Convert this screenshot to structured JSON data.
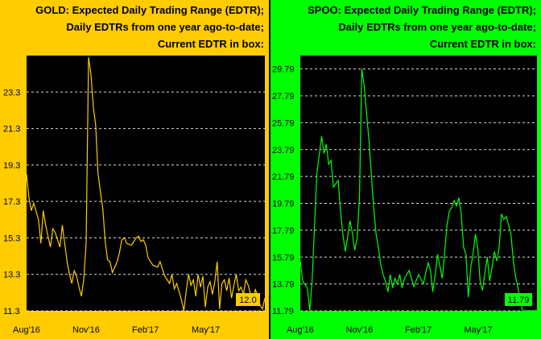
{
  "charts": [
    {
      "id": "gold",
      "title_lines": [
        "GOLD:  Expected Daily Trading Range (EDTR);",
        "Daily EDTRs from one year ago-to-date;",
        "Current EDTR in box:"
      ],
      "current_box": "12.0"
    },
    {
      "id": "spoo",
      "title_lines": [
        "SPOO:  Expected Daily Trading Range (EDTR);",
        "Daily EDTRs from one year ago-to-date;",
        "Current EDTR in box:"
      ],
      "current_box": "11.79"
    }
  ],
  "colors": {
    "gold_background": "#FFCC00",
    "spoo_background": "#00FF00",
    "plot_background": "#000000",
    "gold_line": "#FFCC00",
    "spoo_line": "#00FF00"
  },
  "chart_data": [
    {
      "type": "line",
      "title": "GOLD:  Expected Daily Trading Range (EDTR); Daily EDTRs from one year ago-to-date; Current EDTR in box:",
      "ylim": [
        11.3,
        25.3
      ],
      "yticks": [
        "23.3",
        "21.3",
        "19.3",
        "17.3",
        "15.3",
        "13.3",
        "11.3"
      ],
      "xticks": [
        {
          "label": "Aug'16",
          "t": 0.0
        },
        {
          "label": "Nov'16",
          "t": 0.25
        },
        {
          "label": "Feb'17",
          "t": 0.5
        },
        {
          "label": "May'17",
          "t": 0.75
        }
      ],
      "grid": true,
      "series": [
        {
          "t": [
            0.0,
            0.01,
            0.02,
            0.03,
            0.05,
            0.06,
            0.07,
            0.08,
            0.09,
            0.1,
            0.11,
            0.12,
            0.14,
            0.15,
            0.17,
            0.18,
            0.19,
            0.2,
            0.21,
            0.22,
            0.23,
            0.24,
            0.25,
            0.26,
            0.27,
            0.28,
            0.29,
            0.3,
            0.31,
            0.32,
            0.33,
            0.34,
            0.35,
            0.36,
            0.38,
            0.39,
            0.4,
            0.41,
            0.42,
            0.44,
            0.46,
            0.47,
            0.48,
            0.49,
            0.5,
            0.51,
            0.53,
            0.55,
            0.56,
            0.58,
            0.6,
            0.61,
            0.62,
            0.63,
            0.65,
            0.66,
            0.67,
            0.68,
            0.69,
            0.7,
            0.71,
            0.72,
            0.73,
            0.74,
            0.75,
            0.76,
            0.77,
            0.78,
            0.79,
            0.8,
            0.81,
            0.82,
            0.83,
            0.84,
            0.85,
            0.86,
            0.87,
            0.88,
            0.89,
            0.9,
            0.91,
            0.92,
            0.93,
            0.94,
            0.95,
            0.96,
            0.97,
            0.98,
            0.99,
            1.0
          ],
          "values": [
            18.8,
            17.5,
            16.8,
            17.2,
            16.3,
            15.0,
            16.8,
            16.0,
            15.4,
            14.8,
            15.8,
            15.6,
            14.8,
            16.0,
            14.0,
            13.3,
            12.8,
            13.5,
            13.2,
            12.6,
            12.1,
            13.0,
            15.0,
            25.2,
            24.3,
            22.5,
            21.5,
            18.8,
            17.8,
            16.9,
            15.1,
            14.1,
            14.0,
            13.4,
            14.0,
            14.5,
            15.2,
            15.3,
            15.0,
            14.9,
            15.3,
            15.4,
            15.1,
            15.2,
            14.9,
            14.2,
            13.8,
            13.7,
            14.0,
            13.2,
            12.8,
            13.3,
            12.5,
            12.8,
            11.9,
            11.3,
            12.4,
            13.3,
            12.7,
            13.0,
            12.1,
            13.3,
            12.6,
            13.2,
            11.5,
            12.6,
            12.9,
            12.2,
            12.9,
            14.0,
            11.4,
            12.8,
            13.0,
            12.4,
            13.1,
            12.0,
            12.7,
            13.3,
            12.4,
            12.6,
            12.2,
            13.0,
            12.7,
            12.2,
            11.8,
            12.5,
            12.0,
            11.6,
            11.4,
            12.0
          ]
        }
      ]
    },
    {
      "type": "line",
      "title": "SPOO:  Expected Daily Trading Range (EDTR); Daily EDTRs from one year ago-to-date; Current EDTR in box:",
      "ylim": [
        11.79,
        30.79
      ],
      "yticks": [
        "29.79",
        "27.79",
        "25.79",
        "23.79",
        "21.79",
        "19.79",
        "17.79",
        "15.79",
        "13.79",
        "11.79"
      ],
      "xticks": [
        {
          "label": "Aug'16",
          "t": 0.0
        },
        {
          "label": "Nov'16",
          "t": 0.25
        },
        {
          "label": "Feb'17",
          "t": 0.5
        },
        {
          "label": "May'17",
          "t": 0.75
        }
      ],
      "grid": true,
      "series": [
        {
          "t": [
            0.0,
            0.01,
            0.03,
            0.04,
            0.05,
            0.06,
            0.07,
            0.09,
            0.1,
            0.11,
            0.12,
            0.13,
            0.14,
            0.16,
            0.17,
            0.18,
            0.19,
            0.2,
            0.21,
            0.22,
            0.23,
            0.24,
            0.25,
            0.26,
            0.27,
            0.28,
            0.29,
            0.3,
            0.31,
            0.32,
            0.33,
            0.34,
            0.35,
            0.36,
            0.37,
            0.38,
            0.39,
            0.4,
            0.41,
            0.42,
            0.43,
            0.44,
            0.46,
            0.48,
            0.5,
            0.52,
            0.54,
            0.55,
            0.56,
            0.57,
            0.58,
            0.6,
            0.62,
            0.63,
            0.64,
            0.65,
            0.66,
            0.67,
            0.68,
            0.69,
            0.7,
            0.71,
            0.72,
            0.73,
            0.74,
            0.75,
            0.76,
            0.77,
            0.78,
            0.79,
            0.8,
            0.81,
            0.82,
            0.83,
            0.84,
            0.85,
            0.86,
            0.87,
            0.88,
            0.89,
            0.9,
            0.91,
            0.92,
            0.93,
            0.94,
            0.95,
            0.96,
            0.97,
            0.98,
            0.99,
            1.0
          ],
          "values": [
            15.5,
            14.0,
            13.5,
            11.8,
            14.0,
            18.0,
            22.0,
            24.8,
            23.5,
            24.2,
            22.7,
            23.0,
            21.0,
            21.5,
            19.2,
            17.5,
            16.2,
            17.3,
            18.5,
            17.6,
            16.3,
            17.2,
            20.2,
            29.8,
            28.5,
            26.5,
            24.5,
            22.0,
            19.5,
            17.5,
            16.5,
            15.2,
            14.5,
            14.0,
            13.2,
            14.5,
            13.5,
            14.2,
            13.8,
            14.5,
            13.5,
            14.2,
            14.8,
            13.6,
            14.5,
            13.8,
            15.4,
            14.8,
            13.2,
            14.5,
            16.0,
            14.2,
            18.2,
            19.2,
            19.5,
            20.0,
            19.6,
            20.2,
            19.0,
            16.5,
            16.0,
            12.8,
            15.0,
            16.0,
            17.5,
            16.4,
            14.0,
            13.3,
            14.6,
            15.8,
            14.0,
            15.0,
            16.2,
            15.5,
            16.5,
            19.0,
            18.6,
            18.8,
            18.2,
            17.5,
            15.5,
            14.3,
            13.5,
            12.4,
            11.8,
            11.8,
            11.8,
            11.8,
            11.8,
            11.8,
            11.8
          ]
        }
      ]
    }
  ]
}
